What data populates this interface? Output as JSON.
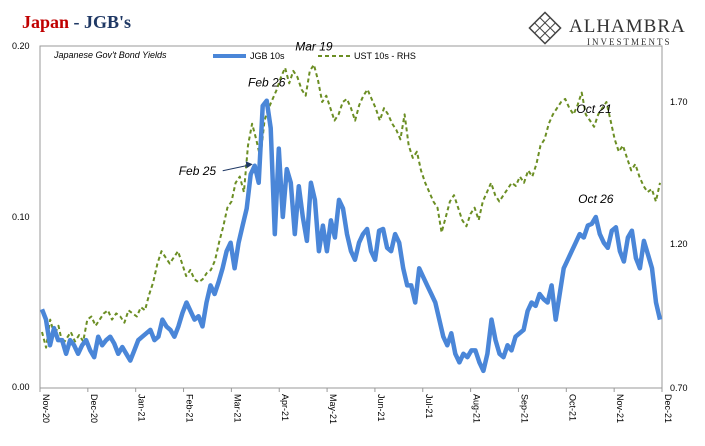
{
  "title": {
    "part1": "Japan",
    "part2": " - JGB's"
  },
  "logo": {
    "name": "Alhambra",
    "sub": "Investments"
  },
  "chart_data": {
    "type": "line",
    "subtitle": "Japanese Gov't Bond Yields",
    "x_tick_labels": [
      "Nov-20",
      "Dec-20",
      "Jan-21",
      "Feb-21",
      "Mar-21",
      "Apr-21",
      "May-21",
      "Jun-21",
      "Jul-21",
      "Aug-21",
      "Sep-21",
      "Oct-21",
      "Nov-21",
      "Dec-21"
    ],
    "y_left": {
      "ticks": [
        "0.00",
        "0.10",
        "0.20"
      ],
      "range": [
        0.0,
        0.2
      ]
    },
    "y_right": {
      "ticks": [
        "0.70",
        "1.20",
        "1.70"
      ],
      "range": [
        0.7,
        1.8
      ]
    },
    "legend_position": "top-center",
    "colors": {
      "jgb": "#4a86d8",
      "ust": "#6b8e23"
    },
    "series": [
      {
        "name": "JGB 10s",
        "axis": "left",
        "style": "solid",
        "values": [
          0.046,
          0.04,
          0.025,
          0.035,
          0.028,
          0.028,
          0.02,
          0.028,
          0.025,
          0.02,
          0.025,
          0.028,
          0.022,
          0.018,
          0.03,
          0.025,
          0.028,
          0.03,
          0.026,
          0.02,
          0.024,
          0.02,
          0.016,
          0.022,
          0.028,
          0.03,
          0.032,
          0.034,
          0.028,
          0.03,
          0.04,
          0.036,
          0.034,
          0.03,
          0.036,
          0.044,
          0.05,
          0.045,
          0.04,
          0.042,
          0.036,
          0.05,
          0.06,
          0.055,
          0.062,
          0.07,
          0.08,
          0.085,
          0.07,
          0.085,
          0.095,
          0.105,
          0.125,
          0.13,
          0.12,
          0.165,
          0.168,
          0.152,
          0.09,
          0.14,
          0.1,
          0.128,
          0.12,
          0.09,
          0.118,
          0.1,
          0.086,
          0.12,
          0.11,
          0.08,
          0.095,
          0.08,
          0.098,
          0.088,
          0.11,
          0.105,
          0.09,
          0.08,
          0.075,
          0.085,
          0.09,
          0.093,
          0.08,
          0.075,
          0.092,
          0.093,
          0.082,
          0.08,
          0.09,
          0.085,
          0.07,
          0.06,
          0.06,
          0.05,
          0.07,
          0.065,
          0.06,
          0.055,
          0.05,
          0.04,
          0.03,
          0.025,
          0.032,
          0.02,
          0.015,
          0.02,
          0.018,
          0.022,
          0.022,
          0.015,
          0.01,
          0.02,
          0.04,
          0.028,
          0.02,
          0.018,
          0.025,
          0.022,
          0.03,
          0.032,
          0.034,
          0.045,
          0.05,
          0.048,
          0.055,
          0.052,
          0.05,
          0.06,
          0.04,
          0.055,
          0.07,
          0.075,
          0.08,
          0.085,
          0.09,
          0.088,
          0.095,
          0.096,
          0.1,
          0.09,
          0.085,
          0.082,
          0.092,
          0.094,
          0.08,
          0.074,
          0.088,
          0.092,
          0.076,
          0.07,
          0.086,
          0.078,
          0.07,
          0.05,
          0.04
        ]
      },
      {
        "name": "UST 10s - RHS",
        "axis": "right",
        "style": "dashed",
        "values": [
          0.88,
          0.83,
          0.92,
          0.87,
          0.9,
          0.84,
          0.86,
          0.88,
          0.85,
          0.87,
          0.85,
          0.92,
          0.93,
          0.9,
          0.92,
          0.94,
          0.95,
          0.92,
          0.94,
          0.93,
          0.91,
          0.95,
          0.94,
          0.93,
          0.96,
          0.95,
          1.0,
          1.04,
          1.1,
          1.14,
          1.12,
          1.1,
          1.12,
          1.14,
          1.1,
          1.06,
          1.08,
          1.05,
          1.04,
          1.05,
          1.07,
          1.08,
          1.11,
          1.17,
          1.22,
          1.28,
          1.3,
          1.36,
          1.38,
          1.33,
          1.48,
          1.55,
          1.5,
          1.44,
          1.56,
          1.6,
          1.63,
          1.66,
          1.7,
          1.73,
          1.68,
          1.72,
          1.7,
          1.66,
          1.64,
          1.72,
          1.74,
          1.69,
          1.62,
          1.64,
          1.6,
          1.56,
          1.58,
          1.62,
          1.63,
          1.6,
          1.56,
          1.61,
          1.64,
          1.66,
          1.63,
          1.6,
          1.56,
          1.6,
          1.58,
          1.55,
          1.53,
          1.5,
          1.58,
          1.48,
          1.44,
          1.46,
          1.4,
          1.36,
          1.33,
          1.3,
          1.28,
          1.2,
          1.25,
          1.3,
          1.32,
          1.28,
          1.24,
          1.22,
          1.26,
          1.28,
          1.24,
          1.3,
          1.33,
          1.36,
          1.32,
          1.3,
          1.32,
          1.34,
          1.36,
          1.35,
          1.38,
          1.36,
          1.4,
          1.38,
          1.42,
          1.48,
          1.5,
          1.55,
          1.58,
          1.6,
          1.62,
          1.63,
          1.6,
          1.58,
          1.61,
          1.65,
          1.58,
          1.56,
          1.54,
          1.58,
          1.6,
          1.62,
          1.56,
          1.5,
          1.46,
          1.48,
          1.44,
          1.4,
          1.42,
          1.38,
          1.35,
          1.33,
          1.34,
          1.3,
          1.36
        ]
      }
    ],
    "annotations": [
      {
        "label": "Feb 26",
        "series": "JGB 10s",
        "index": 56,
        "placement": "above"
      },
      {
        "label": "Feb 25",
        "series": "JGB 10s",
        "index": 54,
        "placement": "left-arrow"
      },
      {
        "label": "Mar 19",
        "series": "UST 10s - RHS",
        "index": 66,
        "placement": "above"
      },
      {
        "label": "Oct 21",
        "series": "UST 10s - RHS",
        "index": 134,
        "placement": "above"
      },
      {
        "label": "Oct 26",
        "series": "JGB 10s",
        "index": 138,
        "placement": "above"
      }
    ]
  }
}
